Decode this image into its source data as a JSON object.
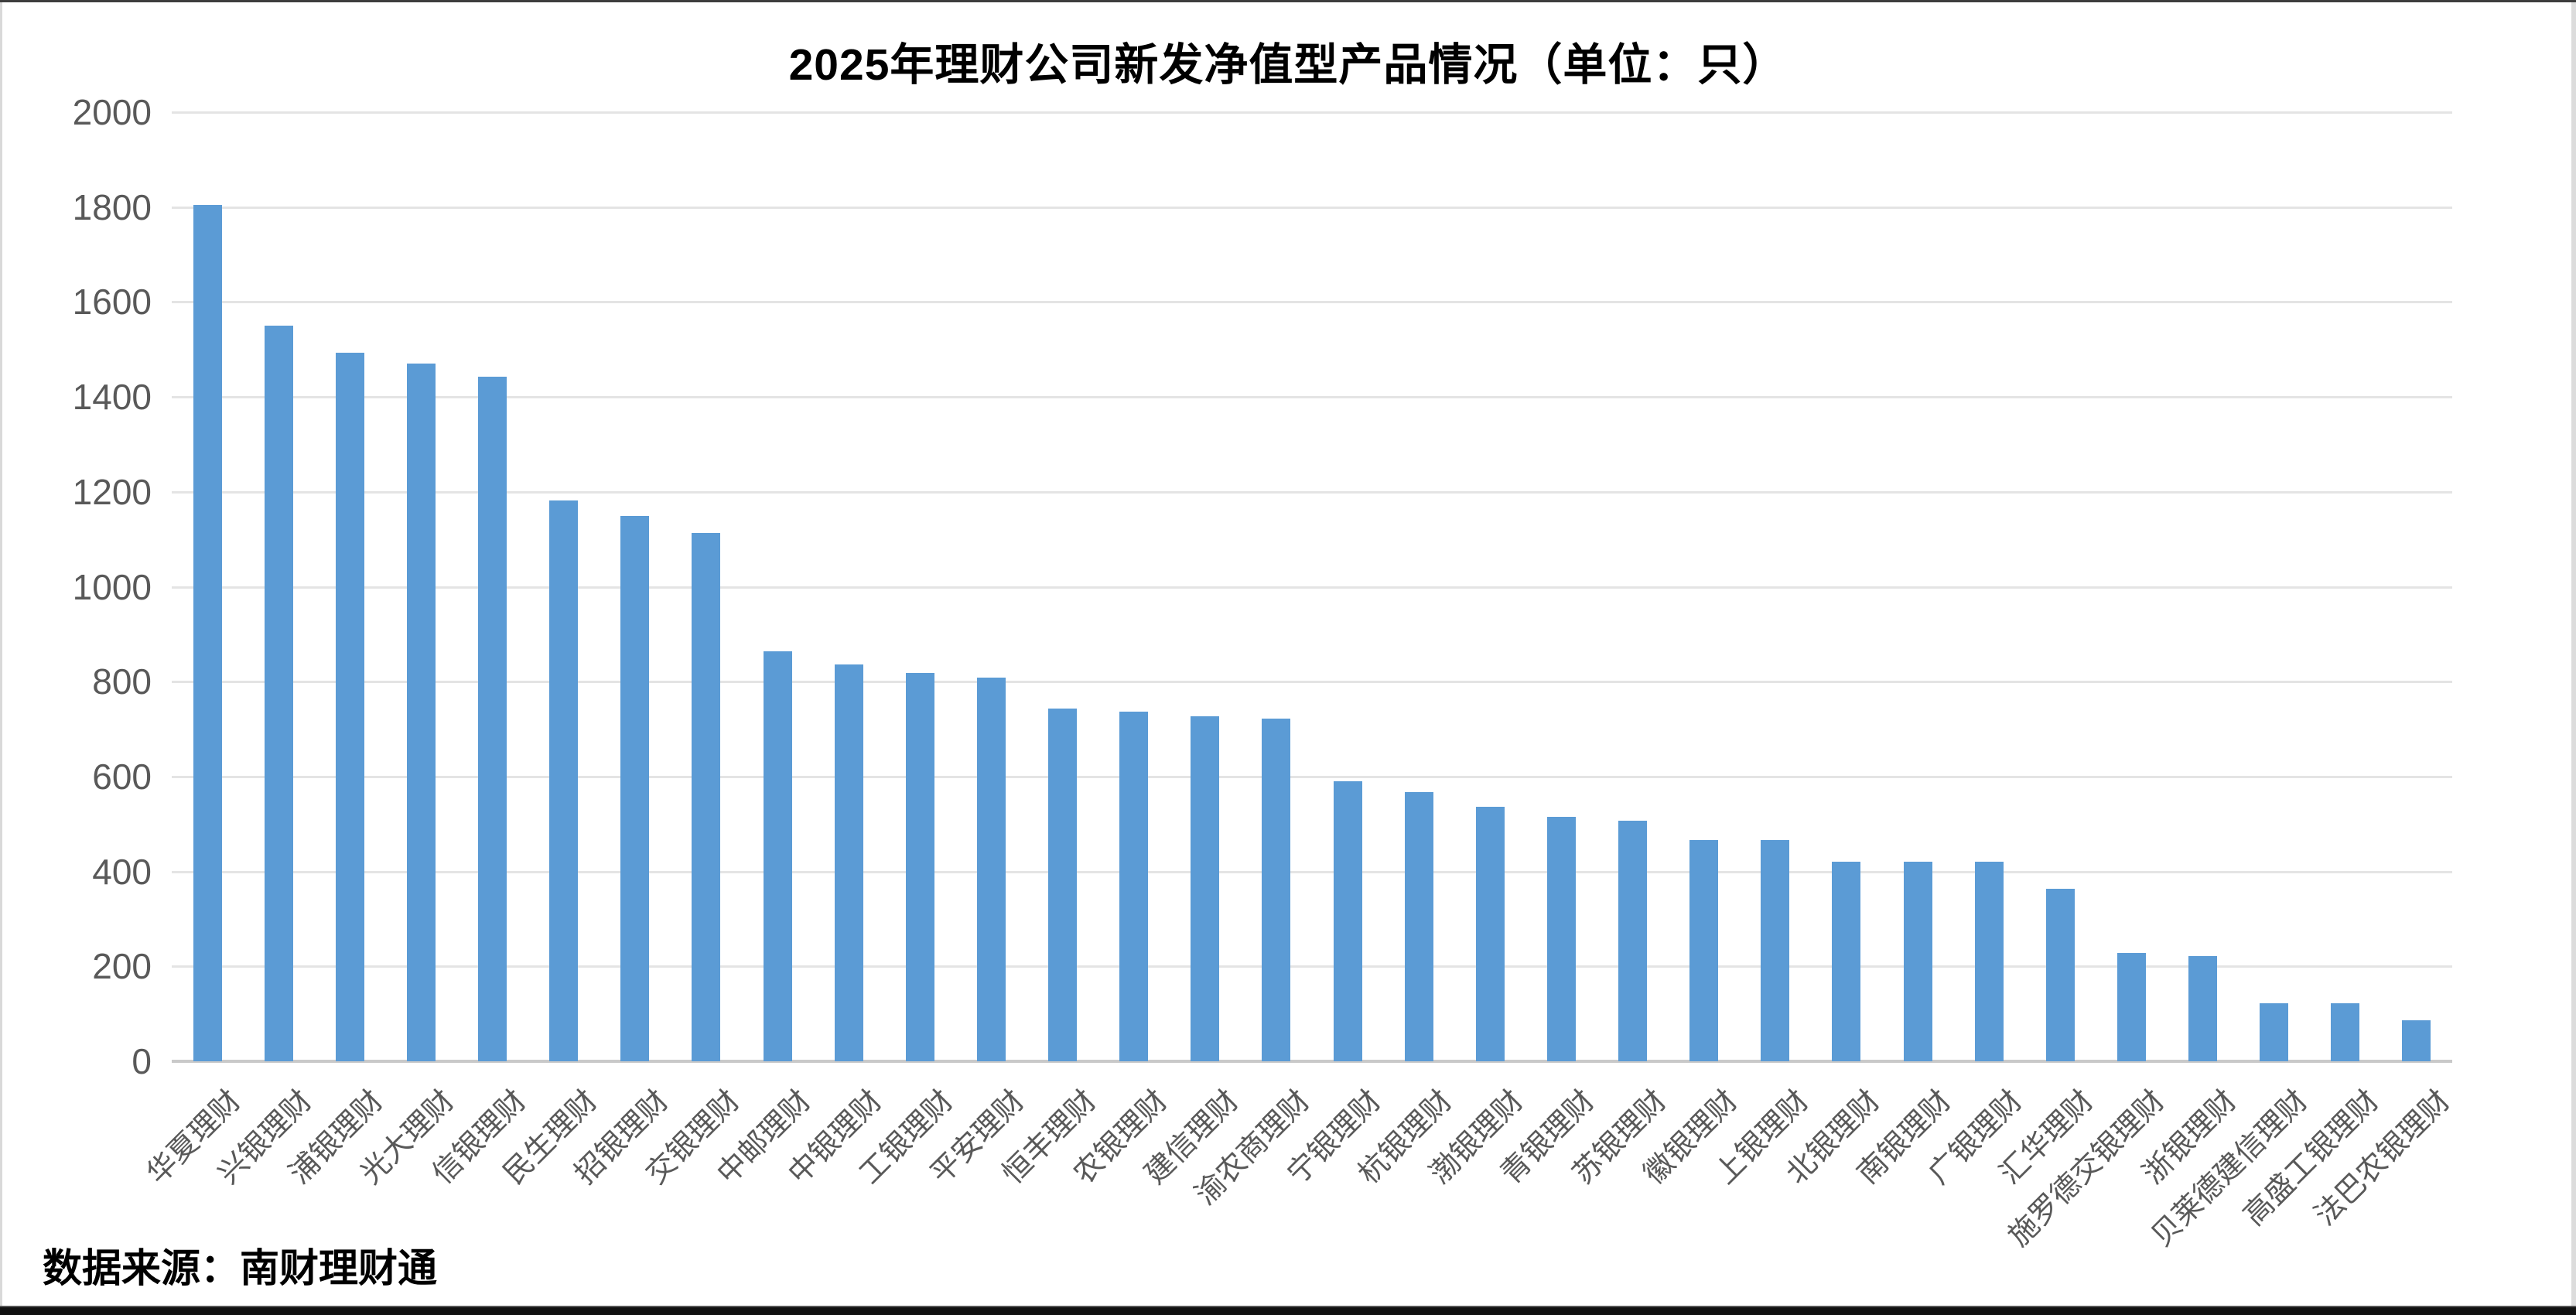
{
  "source": "数据来源：南财理财通",
  "colors": {
    "bar": "#5b9bd5",
    "grid": "#e4e4e4",
    "axis_line": "#c9c9c9",
    "tick_label": "#595959",
    "title": "#000000"
  },
  "chart_data": {
    "type": "bar",
    "title": "2025年理财公司新发净值型产品情况（单位：只）",
    "xlabel": "",
    "ylabel": "",
    "ylim": [
      0,
      2000
    ],
    "ytick_step": 200,
    "yticks": [
      0,
      200,
      400,
      600,
      800,
      1000,
      1200,
      1400,
      1600,
      1800,
      2000
    ],
    "grid": true,
    "legend": "none",
    "categories": [
      "华夏理财",
      "兴银理财",
      "浦银理财",
      "光大理财",
      "信银理财",
      "民生理财",
      "招银理财",
      "交银理财",
      "中邮理财",
      "中银理财",
      "工银理财",
      "平安理财",
      "恒丰理财",
      "农银理财",
      "建信理财",
      "渝农商理财",
      "宁银理财",
      "杭银理财",
      "渤银理财",
      "青银理财",
      "苏银理财",
      "徽银理财",
      "上银理财",
      "北银理财",
      "南银理财",
      "广银理财",
      "汇华理财",
      "施罗德交银理财",
      "浙银理财",
      "贝莱德建信理财",
      "高盛工银理财",
      "法巴农银理财"
    ],
    "values": [
      1805,
      1550,
      1493,
      1470,
      1443,
      1181,
      1149,
      1113,
      864,
      836,
      818,
      809,
      744,
      737,
      727,
      722,
      590,
      567,
      536,
      515,
      507,
      466,
      466,
      421,
      421,
      420,
      364,
      228,
      222,
      122,
      122,
      86
    ]
  }
}
